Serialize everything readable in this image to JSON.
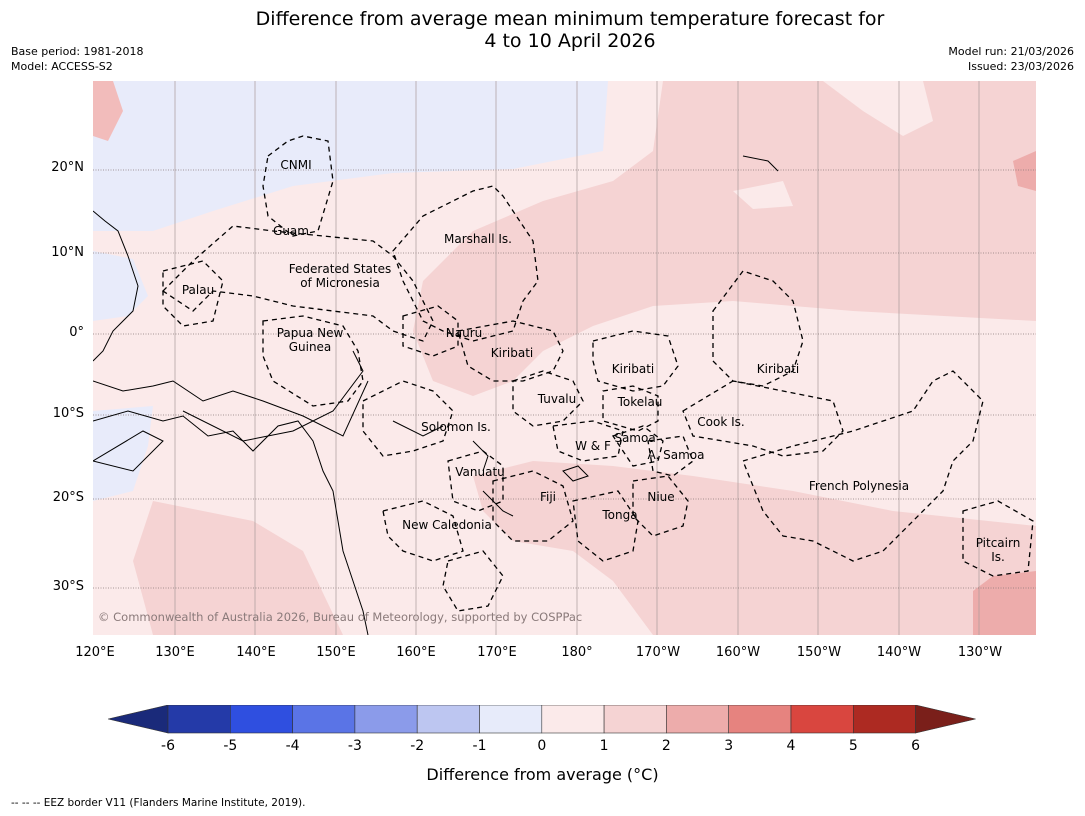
{
  "title": {
    "line1": "Difference from average mean minimum temperature forecast for",
    "line2": "4 to 10 April 2026"
  },
  "meta": {
    "base_period": "Base period: 1981-2018",
    "model": "Model: ACCESS-S2",
    "model_run": "Model run: 21/03/2026",
    "issued": "Issued: 23/03/2026"
  },
  "axes": {
    "lat_labels": [
      "20°N",
      "10°N",
      "0°",
      "10°S",
      "20°S",
      "30°S"
    ],
    "lon_labels": [
      "120°E",
      "130°E",
      "140°E",
      "150°E",
      "160°E",
      "170°E",
      "180°",
      "170°W",
      "160°W",
      "150°W",
      "140°W",
      "130°W"
    ]
  },
  "places": {
    "cnmi": "CNMI",
    "guam": "Guam",
    "marshall": "Marshall Is.",
    "fsm1": "Federated States",
    "fsm2": "of Micronesia",
    "palau": "Palau",
    "png1": "Papua New",
    "png2": "Guinea",
    "nauru": "Nauru",
    "kiribati_w": "Kiribati",
    "kiribati_c": "Kiribati",
    "kiribati_e": "Kiribati",
    "tuvalu": "Tuvalu",
    "tokelau": "Tokelau",
    "cook": "Cook Is.",
    "solomon": "Solomon Is.",
    "wf": "W & F",
    "samoa": "Samoa",
    "asamoa": "A. Samoa",
    "vanuatu": "Vanuatu",
    "fiji": "Fiji",
    "niue": "Niue",
    "tonga": "Tonga",
    "fp": "French Polynesia",
    "newcal": "New Caledonia",
    "pitcairn1": "Pitcairn",
    "pitcairn2": "Is."
  },
  "copyright": "© Commonwealth of Australia 2026, Bureau of Meteorology, supported by COSPPac",
  "colorbar": {
    "ticks": [
      "-6",
      "-5",
      "-4",
      "-3",
      "-2",
      "-1",
      "0",
      "1",
      "2",
      "3",
      "4",
      "5",
      "6"
    ],
    "colors": [
      "#243aa8",
      "#2f4fe0",
      "#5a74e6",
      "#8b9bea",
      "#bdc6f1",
      "#e7ebfa",
      "#fbeaea",
      "#f5d3d3",
      "#edacab",
      "#e6837f",
      "#d9463f",
      "#ad2a22"
    ],
    "under_color": "#1a2a7a",
    "over_color": "#7a1f1a",
    "label": "Difference from average (°C)"
  },
  "footnote": "--  --  -- EEZ border V11 (Flanders Marine Institute, 2019)."
}
